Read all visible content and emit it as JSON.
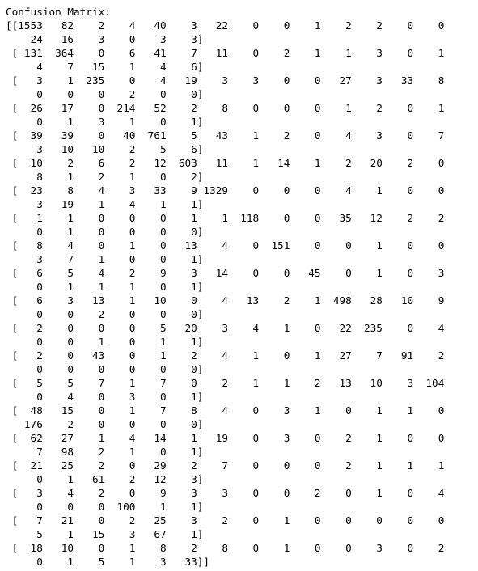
{
  "output": {
    "title": "Confusion Matrix:",
    "lines": [
      "[[1553   82    2    4   40    3   22    0    0    1    2    2    0    0",
      "    24   16    3    0    3    3]",
      " [ 131  364    0    6   41    7   11    0    2    1    1    3    0    1",
      "     4    7   15    1    4    6]",
      " [   3    1  235    0    4   19    3    3    0    0   27    3   33    8",
      "     0    0    0    2    0    0]",
      " [  26   17    0  214   52    2    8    0    0    0    1    2    0    1",
      "     0    1    3    1    0    1]",
      " [  39   39    0   40  761    5   43    1    2    0    4    3    0    7",
      "     3   10   10    2    5    6]",
      " [  10    2    6    2   12  603   11    1   14    1    2   20    2    0",
      "     8    1    2    1    0    2]",
      " [  23    8    4    3   33    9 1329    0    0    0    4    1    0    0",
      "     3   19    1    4    1    1]",
      " [   1    1    0    0    0    1    1  118    0    0   35   12    2    2",
      "     0    1    0    0    0    0]",
      " [   8    4    0    1    0   13    4    0  151    0    0    1    0    0",
      "     3    7    1    0    0    1]",
      " [   6    5    4    2    9    3   14    0    0   45    0    1    0    3",
      "     0    1    1    1    0    1]",
      " [   6    3   13    1   10    0    4   13    2    1  498   28   10    9",
      "     0    0    2    0    0    0]",
      " [   2    0    0    0    5   20    3    4    1    0   22  235    0    4",
      "     0    0    1    0    1    1]",
      " [   2    0   43    0    1    2    4    1    0    1   27    7   91    2",
      "     0    0    0    0    0    0]",
      " [   5    5    7    1    7    0    2    1    1    2   13   10    3  104",
      "     0    4    0    3    0    1]",
      " [  48   15    0    1    7    8    4    0    3    1    0    1    1    0",
      "   176    2    0    0    0    0]",
      " [  62   27    1    4   14    1   19    0    3    0    2    1    0    0",
      "     7   98    2    1    0    1]",
      " [  21   25    2    0   29    2    7    0    0    0    2    1    1    1",
      "     0    1   61    2   12    3]",
      " [   3    4    2    0    9    3    3    0    0    2    0    1    0    4",
      "     0    0    0  100    1    1]",
      " [   7   21    0    2   25    3    2    0    1    0    0    0    0    0",
      "     5    1   15    3   67    1]",
      " [  18   10    0    1    8    2    8    0    1    0    0    3    0    2",
      "     0    1    5    1    3   33]]"
    ]
  }
}
